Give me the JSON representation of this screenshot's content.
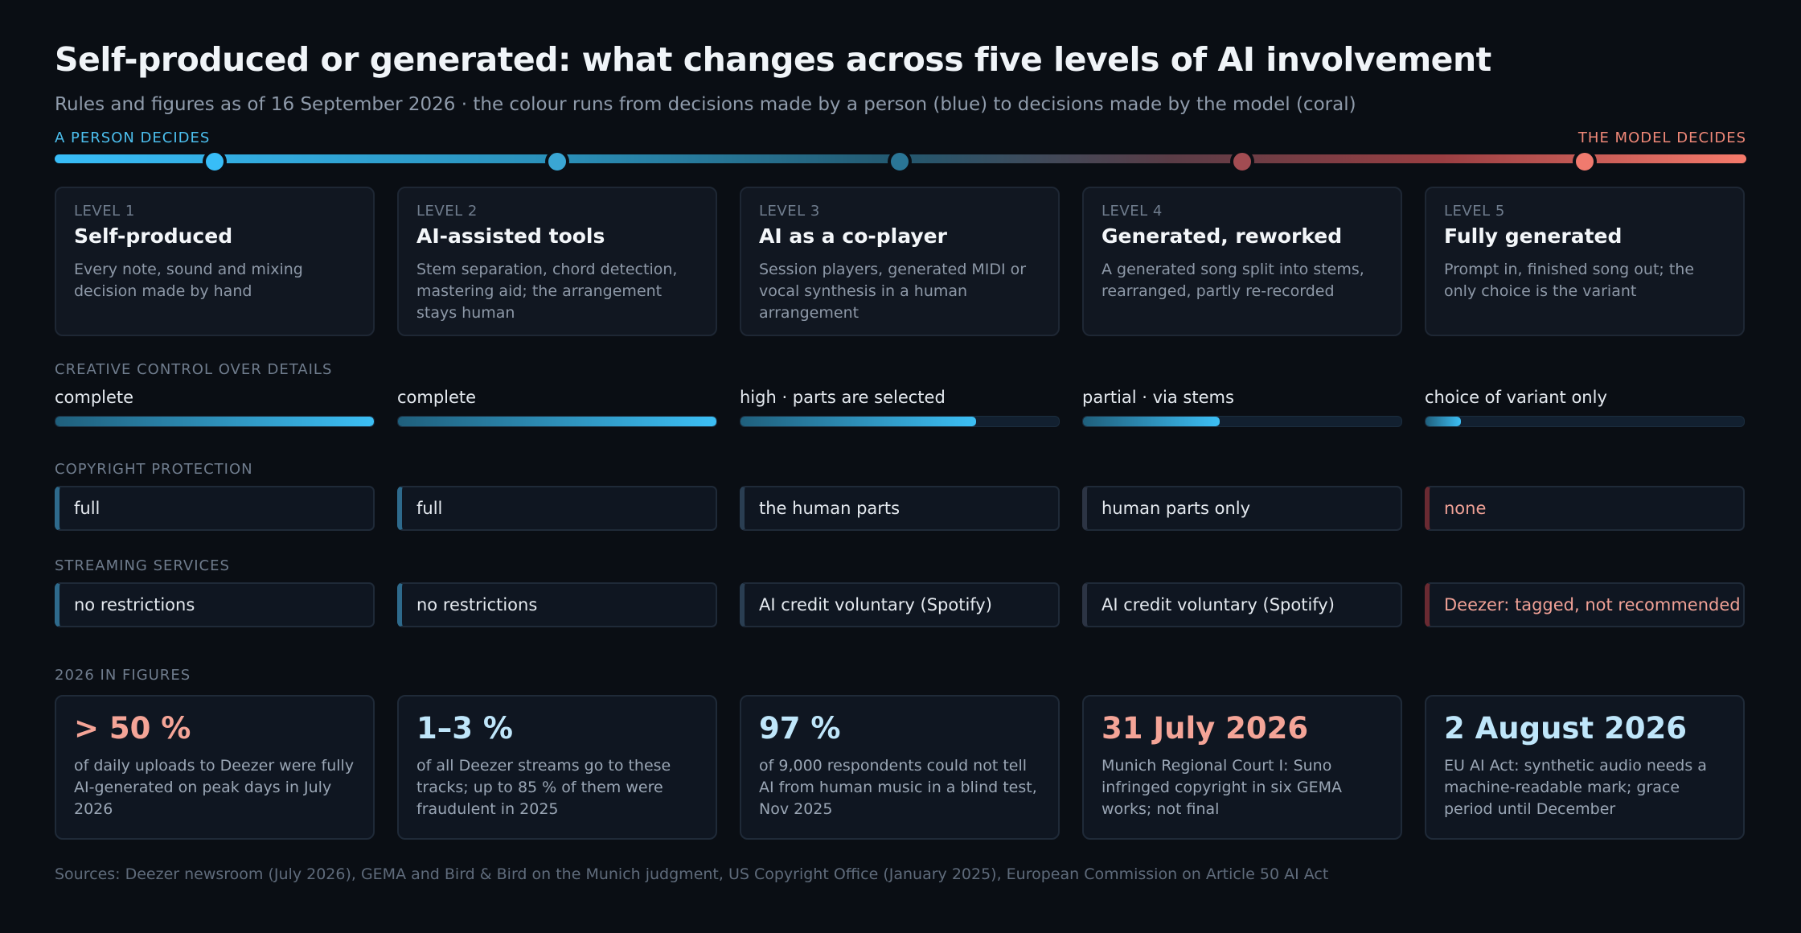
{
  "title": "Self-produced or generated: what changes across five levels of AI involvement",
  "subtitle": "Rules and figures as of 16 September 2026 · the colour runs from decisions made by a person (blue) to decisions made by the model (coral)",
  "scale": {
    "left_label": "A PERSON DECIDES",
    "right_label": "THE MODEL DECIDES",
    "colors": [
      "#38bdf8",
      "#3aa6d4",
      "#2a7596",
      "#a24c52",
      "#f07a6e"
    ]
  },
  "levels": [
    {
      "num": "LEVEL 1",
      "name": "Self-produced",
      "desc": "Every note, sound and mixing decision made by hand"
    },
    {
      "num": "LEVEL 2",
      "name": "AI-assisted tools",
      "desc": "Stem separation, chord detection, mastering aid; the arrangement stays human"
    },
    {
      "num": "LEVEL 3",
      "name": "AI as a co-player",
      "desc": "Session players, generated MIDI or vocal synthesis in a human arrangement"
    },
    {
      "num": "LEVEL 4",
      "name": "Generated, reworked",
      "desc": "A generated song split into stems, rearranged, partly re-recorded"
    },
    {
      "num": "LEVEL 5",
      "name": "Fully generated",
      "desc": "Prompt in, finished song out; the only choice is the variant"
    }
  ],
  "control": {
    "label": "CREATIVE CONTROL OVER DETAILS",
    "items": [
      {
        "text": "complete",
        "level": 1.0
      },
      {
        "text": "complete",
        "level": 1.0
      },
      {
        "text": "high · parts are selected",
        "level": 0.74
      },
      {
        "text": "partial · via stems",
        "level": 0.43
      },
      {
        "text": "choice of variant only",
        "level": 0.11
      }
    ]
  },
  "copyright": {
    "label": "COPYRIGHT PROTECTION",
    "items": [
      {
        "text": "full",
        "accent": "#2e6a8c",
        "color": "#e4e9ef"
      },
      {
        "text": "full",
        "accent": "#2e6a8c",
        "color": "#e4e9ef"
      },
      {
        "text": "the human parts",
        "accent": "#2a3e52",
        "color": "#e4e9ef"
      },
      {
        "text": "human parts only",
        "accent": "#2c3444",
        "color": "#e4e9ef"
      },
      {
        "text": "none",
        "accent": "#6a2a32",
        "color": "#f0a196"
      }
    ]
  },
  "streaming": {
    "label": "STREAMING SERVICES",
    "items": [
      {
        "text": "no restrictions",
        "accent": "#2e6a8c",
        "color": "#e4e9ef"
      },
      {
        "text": "no restrictions",
        "accent": "#2e6a8c",
        "color": "#e4e9ef"
      },
      {
        "text": "AI credit voluntary (Spotify)",
        "accent": "#2a3e52",
        "color": "#e4e9ef"
      },
      {
        "text": "AI credit voluntary (Spotify)",
        "accent": "#2c3444",
        "color": "#e4e9ef"
      },
      {
        "text": "Deezer: tagged, not recommended",
        "accent": "#6a2a32",
        "color": "#f0a196"
      }
    ]
  },
  "figures": {
    "label": "2026 IN FIGURES",
    "items": [
      {
        "value": "> 50 %",
        "color": "#f4a497",
        "desc": "of daily uploads to Deezer were fully AI-generated on peak days in July 2026"
      },
      {
        "value": "1–3 %",
        "color": "#bfe6fa",
        "desc": "of all Deezer streams go to these tracks; up to 85 % of them were fraudulent in 2025"
      },
      {
        "value": "97 %",
        "color": "#bfe6fa",
        "desc": "of 9,000 respondents could not tell AI from human music in a blind test, Nov 2025"
      },
      {
        "value": "31 July 2026",
        "color": "#f4a497",
        "desc": "Munich Regional Court I: Suno infringed copyright in six GEMA works; not final"
      },
      {
        "value": "2 August 2026",
        "color": "#bfe6fa",
        "desc": "EU AI Act: synthetic audio needs a machine-readable mark; grace period until December"
      }
    ]
  },
  "sources": "Sources: Deezer newsroom (July 2026), GEMA and Bird & Bird on the Munich judgment, US Copyright Office (January 2025), European Commission on Article 50 AI Act"
}
